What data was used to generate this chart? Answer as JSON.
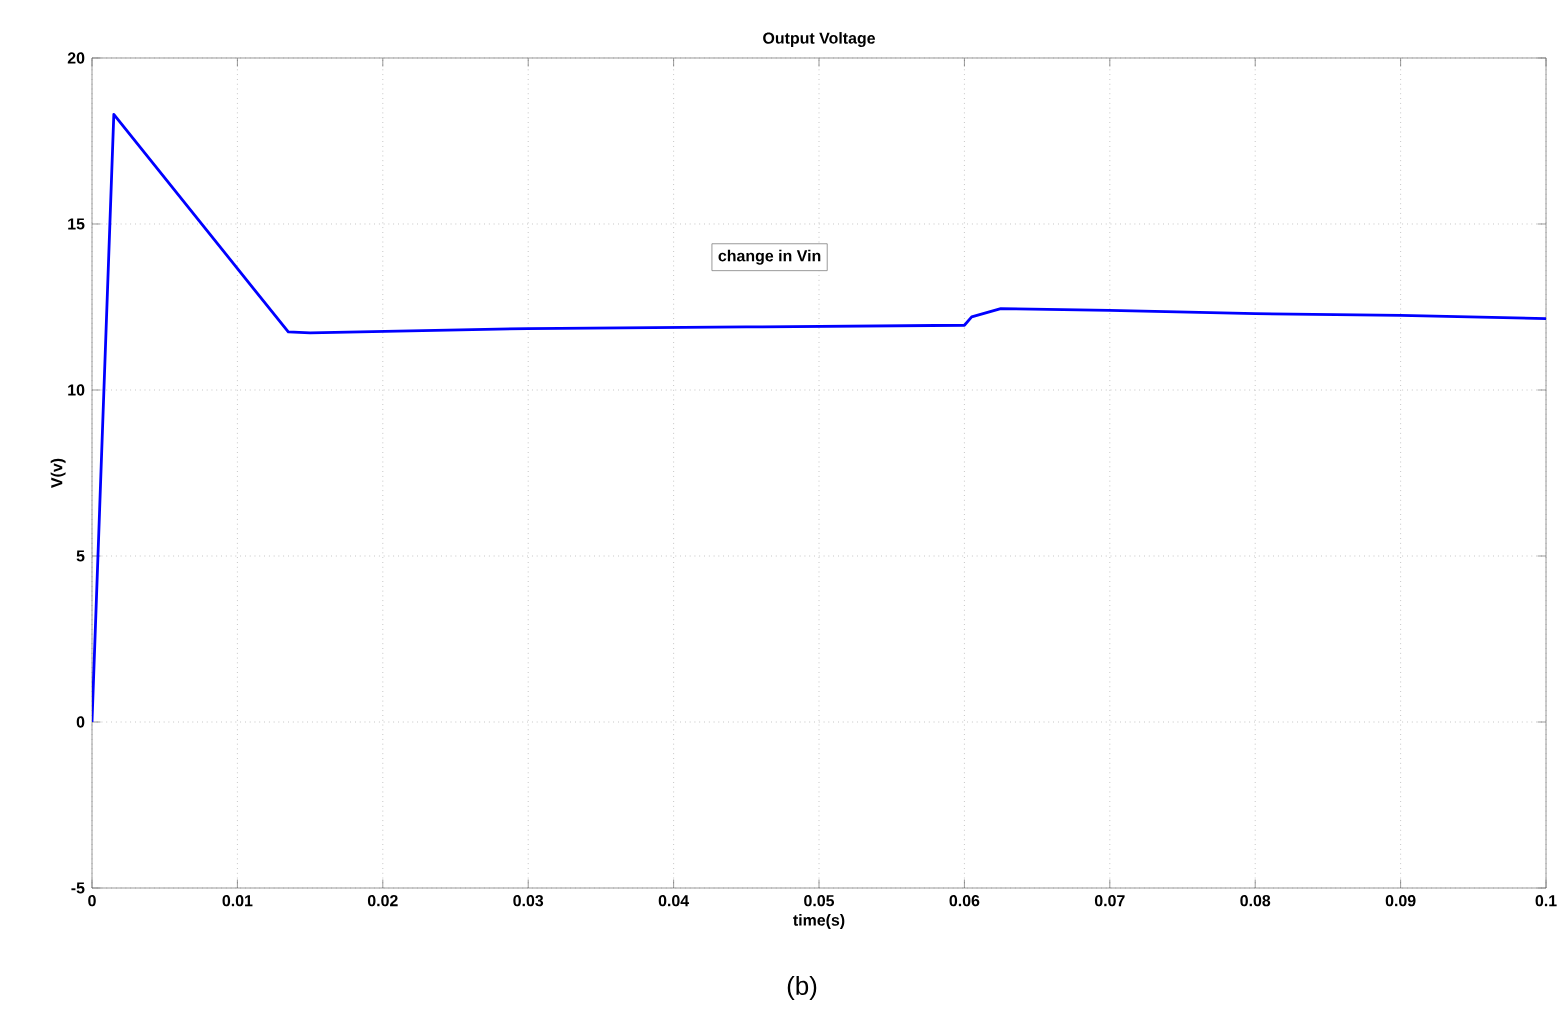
{
  "chart_data": {
    "type": "line",
    "title": "Output Voltage",
    "xlabel": "time(s)",
    "ylabel": "V(v)",
    "annotations": [
      "change in Vin",
      "(b)"
    ],
    "x": [
      0,
      0.0015,
      0.0135,
      0.015,
      0.03,
      0.045,
      0.06,
      0.0605,
      0.0625,
      0.07,
      0.08,
      0.09,
      0.1
    ],
    "series": [
      {
        "color": "#0000ff",
        "values": [
          0,
          18.3,
          11.75,
          11.72,
          11.85,
          11.9,
          11.95,
          12.2,
          12.45,
          12.4,
          12.3,
          12.25,
          12.15
        ]
      }
    ],
    "xlim": [
      0,
      0.1
    ],
    "ylim": [
      -5,
      20
    ],
    "xticks": [
      0,
      0.01,
      0.02,
      0.03,
      0.04,
      0.05,
      0.06,
      0.07,
      0.08,
      0.09,
      0.1
    ],
    "yticks": [
      -5,
      0,
      5,
      10,
      15,
      20
    ],
    "grid": true,
    "line_style": "solid"
  }
}
